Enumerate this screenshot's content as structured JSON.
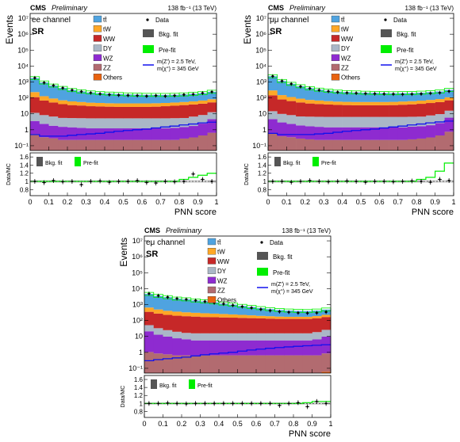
{
  "colors": {
    "ttbar": "#4fa3e0",
    "tW": "#ffa726",
    "WW": "#c62828",
    "DY": "#aab7c7",
    "WZ": "#8e2bd0",
    "ZZ": "#b26b70",
    "Others": "#e8620f",
    "bkg_fit": "#555555",
    "prefit": "#00ee00",
    "signal": "#1010ee",
    "data": "#000000"
  },
  "chart_data": [
    {
      "type": "area",
      "cms_label": "CMS",
      "preliminary_label": "Preliminary",
      "lumi_label": "138 fb⁻¹ (13 TeV)",
      "channel_label": "ee channel",
      "region_label": "SR",
      "ylabel": "Events",
      "ratio_ylabel": "Data/MC",
      "xlabel": "PNN score",
      "xlim": [
        0,
        1
      ],
      "ylim": [
        0.05,
        20000000
      ],
      "y_scale": "log",
      "ratio_ylim": [
        0.65,
        1.7
      ],
      "x_ticks": [
        "0",
        "0.1",
        "0.2",
        "0.3",
        "0.4",
        "0.5",
        "0.6",
        "0.7",
        "0.8",
        "0.9",
        "1"
      ],
      "y_ticks": [
        "10⁻¹",
        "1",
        "10",
        "10²",
        "10³",
        "10⁴",
        "10⁵",
        "10⁶",
        "10⁷"
      ],
      "ratio_ticks": [
        "0.8",
        "1",
        "1.2",
        "1.4",
        "1.6"
      ],
      "legend_process": [
        "tt̄",
        "tW",
        "WW",
        "DY",
        "WZ",
        "ZZ",
        "Others"
      ],
      "legend_extra": [
        "Data",
        "Bkg. fit",
        "Pre-fit",
        "m(Z′) = 2.5 TeV,",
        "m(χ°) = 345 GeV"
      ],
      "ratio_legend": [
        "Bkg. fit",
        "Pre-fit"
      ],
      "bin_edges": [
        0,
        0.05,
        0.1,
        0.15,
        0.2,
        0.25,
        0.3,
        0.35,
        0.4,
        0.45,
        0.5,
        0.55,
        0.6,
        0.65,
        0.7,
        0.75,
        0.8,
        0.85,
        0.9,
        0.95,
        1.0
      ],
      "series": [
        {
          "name": "Others",
          "values": [
            0.05,
            0.04,
            0.04,
            0.03,
            0.03,
            0.03,
            0.03,
            0.03,
            0.03,
            0.03,
            0.03,
            0.03,
            0.03,
            0.03,
            0.03,
            0.03,
            0.03,
            0.03,
            0.04,
            0.05
          ]
        },
        {
          "name": "ZZ",
          "values": [
            0.5,
            0.3,
            0.25,
            0.2,
            0.2,
            0.2,
            0.2,
            0.2,
            0.2,
            0.2,
            0.2,
            0.2,
            0.2,
            0.2,
            0.2,
            0.2,
            0.25,
            0.3,
            0.4,
            0.6
          ]
        },
        {
          "name": "WZ",
          "values": [
            3,
            2,
            1.5,
            1.3,
            1.2,
            1.1,
            1.0,
            1.0,
            1.0,
            1.0,
            1.0,
            1.0,
            1.0,
            1.0,
            1.0,
            1.1,
            1.2,
            1.4,
            2.0,
            4.0
          ]
        },
        {
          "name": "DY",
          "values": [
            8,
            6,
            5,
            4,
            4,
            4,
            4,
            4,
            4,
            4,
            4,
            4,
            4,
            4,
            4,
            4,
            4,
            5,
            6,
            8
          ]
        },
        {
          "name": "WW",
          "values": [
            100,
            60,
            45,
            35,
            30,
            28,
            25,
            24,
            23,
            22,
            22,
            22,
            22,
            23,
            25,
            27,
            30,
            32,
            35,
            40
          ]
        },
        {
          "name": "tW",
          "values": [
            120,
            60,
            40,
            30,
            25,
            22,
            20,
            19,
            18,
            18,
            18,
            18,
            18,
            18,
            18,
            19,
            20,
            22,
            25,
            30
          ]
        },
        {
          "name": "tt̄",
          "values": [
            1500,
            800,
            500,
            350,
            250,
            200,
            170,
            150,
            140,
            130,
            120,
            115,
            110,
            108,
            105,
            105,
            110,
            120,
            130,
            160
          ]
        }
      ],
      "data_points": [
        1800,
        900,
        600,
        420,
        310,
        250,
        210,
        180,
        160,
        150,
        145,
        140,
        130,
        140,
        130,
        140,
        160,
        170,
        200,
        240
      ],
      "signal": [
        0.5,
        0.4,
        0.4,
        0.4,
        0.45,
        0.5,
        0.55,
        0.6,
        0.7,
        0.8,
        0.9,
        1.0,
        1.1,
        1.3,
        1.5,
        1.7,
        2.0,
        2.3,
        2.7,
        3.0
      ],
      "ratio_data": [
        1.0,
        0.97,
        1.02,
        0.99,
        1.0,
        0.92,
        1.0,
        1.01,
        0.98,
        1.0,
        1.0,
        1.02,
        0.97,
        0.96,
        1.0,
        0.99,
        1.0,
        1.18,
        1.05,
        1.0
      ],
      "ratio_prefit": [
        1.0,
        1.0,
        1.0,
        1.0,
        1.0,
        1.0,
        1.0,
        1.0,
        1.0,
        1.0,
        1.0,
        1.0,
        1.0,
        1.0,
        1.0,
        1.0,
        1.05,
        1.1,
        1.15,
        1.2
      ]
    },
    {
      "type": "area",
      "cms_label": "CMS",
      "preliminary_label": "Preliminary",
      "lumi_label": "138 fb⁻¹ (13 TeV)",
      "channel_label": "μμ channel",
      "region_label": "SR",
      "ylabel": "Events",
      "ratio_ylabel": "Data/MC",
      "xlabel": "PNN score",
      "xlim": [
        0,
        1
      ],
      "ylim": [
        0.05,
        20000000
      ],
      "y_scale": "log",
      "ratio_ylim": [
        0.65,
        1.7
      ],
      "x_ticks": [
        "0",
        "0.1",
        "0.2",
        "0.3",
        "0.4",
        "0.5",
        "0.6",
        "0.7",
        "0.8",
        "0.9",
        "1"
      ],
      "y_ticks": [
        "10⁻¹",
        "1",
        "10",
        "10²",
        "10³",
        "10⁴",
        "10⁵",
        "10⁶",
        "10⁷"
      ],
      "ratio_ticks": [
        "0.8",
        "1",
        "1.2",
        "1.4",
        "1.6"
      ],
      "legend_process": [
        "tt̄",
        "tW",
        "WW",
        "DY",
        "WZ",
        "ZZ",
        "Others"
      ],
      "legend_extra": [
        "Data",
        "Bkg. fit",
        "Pre-fit",
        "m(Z′) = 2.5 TeV,",
        "m(χ°) = 345 GeV"
      ],
      "ratio_legend": [
        "Bkg. fit",
        "Pre-fit"
      ],
      "bin_edges": [
        0,
        0.05,
        0.1,
        0.15,
        0.2,
        0.25,
        0.3,
        0.35,
        0.4,
        0.45,
        0.5,
        0.55,
        0.6,
        0.65,
        0.7,
        0.75,
        0.8,
        0.85,
        0.9,
        0.95,
        1.0
      ],
      "series": [
        {
          "name": "Others",
          "values": [
            0.05,
            0.04,
            0.04,
            0.03,
            0.03,
            0.03,
            0.03,
            0.03,
            0.03,
            0.03,
            0.03,
            0.03,
            0.03,
            0.03,
            0.03,
            0.03,
            0.03,
            0.03,
            0.04,
            0.05
          ]
        },
        {
          "name": "ZZ",
          "values": [
            0.6,
            0.35,
            0.3,
            0.25,
            0.22,
            0.2,
            0.2,
            0.2,
            0.2,
            0.2,
            0.2,
            0.2,
            0.2,
            0.2,
            0.2,
            0.22,
            0.25,
            0.3,
            0.4,
            0.7
          ]
        },
        {
          "name": "WZ",
          "values": [
            4,
            2.5,
            2,
            1.6,
            1.4,
            1.3,
            1.2,
            1.2,
            1.2,
            1.2,
            1.2,
            1.2,
            1.2,
            1.2,
            1.2,
            1.3,
            1.4,
            1.6,
            2.2,
            5.0
          ]
        },
        {
          "name": "DY",
          "values": [
            10,
            7,
            6,
            5,
            5,
            5,
            5,
            5,
            5,
            5,
            5,
            5,
            5,
            5,
            5,
            5,
            5,
            6,
            7,
            10
          ]
        },
        {
          "name": "WW",
          "values": [
            130,
            70,
            55,
            45,
            38,
            35,
            32,
            30,
            29,
            28,
            28,
            28,
            28,
            29,
            31,
            33,
            36,
            40,
            45,
            55
          ]
        },
        {
          "name": "tW",
          "values": [
            150,
            70,
            50,
            38,
            30,
            27,
            24,
            22,
            21,
            21,
            21,
            21,
            21,
            21,
            22,
            23,
            25,
            27,
            30,
            38
          ]
        },
        {
          "name": "tt̄",
          "values": [
            2000,
            1000,
            650,
            450,
            330,
            260,
            220,
            190,
            175,
            165,
            155,
            150,
            145,
            140,
            140,
            140,
            145,
            155,
            170,
            210
          ]
        }
      ],
      "data_points": [
        2300,
        1150,
        760,
        520,
        400,
        310,
        260,
        230,
        210,
        200,
        190,
        185,
        180,
        175,
        170,
        175,
        180,
        195,
        210,
        260
      ],
      "signal": [
        0.6,
        0.5,
        0.5,
        0.5,
        0.5,
        0.55,
        0.6,
        0.7,
        0.8,
        0.9,
        1.0,
        1.1,
        1.3,
        1.5,
        1.7,
        2.0,
        2.3,
        2.7,
        3.1,
        3.5
      ],
      "ratio_data": [
        1.0,
        1.0,
        0.98,
        1.0,
        1.02,
        1.0,
        0.99,
        1.0,
        1.01,
        1.0,
        0.98,
        1.0,
        1.0,
        0.99,
        1.0,
        1.01,
        1.0,
        0.98,
        1.05,
        1.02
      ],
      "ratio_prefit": [
        1.0,
        1.0,
        1.0,
        1.0,
        1.0,
        1.0,
        1.0,
        1.0,
        1.0,
        1.0,
        1.0,
        1.0,
        1.0,
        1.0,
        1.0,
        1.0,
        1.05,
        1.1,
        1.25,
        1.45
      ]
    },
    {
      "type": "area",
      "cms_label": "CMS",
      "preliminary_label": "Preliminary",
      "lumi_label": "138 fb⁻¹ (13 TeV)",
      "channel_label": "eμ channel",
      "region_label": "SR",
      "ylabel": "Events",
      "ratio_ylabel": "Data/MC",
      "xlabel": "PNN score",
      "xlim": [
        0,
        1
      ],
      "ylim": [
        0.05,
        20000000
      ],
      "y_scale": "log",
      "ratio_ylim": [
        0.65,
        1.7
      ],
      "x_ticks": [
        "0",
        "0.1",
        "0.2",
        "0.3",
        "0.4",
        "0.5",
        "0.6",
        "0.7",
        "0.8",
        "0.9",
        "1"
      ],
      "y_ticks": [
        "10⁻¹",
        "1",
        "10",
        "10²",
        "10³",
        "10⁴",
        "10⁵",
        "10⁶",
        "10⁷"
      ],
      "ratio_ticks": [
        "0.8",
        "1",
        "1.2",
        "1.4",
        "1.6"
      ],
      "legend_process": [
        "tt̄",
        "tW",
        "WW",
        "DY",
        "WZ",
        "ZZ",
        "Others"
      ],
      "legend_extra": [
        "Data",
        "Bkg. fit",
        "Pre-fit",
        "m(Z′) = 2.5 TeV,",
        "m(χ°) = 345 GeV"
      ],
      "ratio_legend": [
        "Bkg. fit",
        "Pre-fit"
      ],
      "bin_edges": [
        0,
        0.05,
        0.1,
        0.15,
        0.2,
        0.25,
        0.3,
        0.35,
        0.4,
        0.45,
        0.5,
        0.55,
        0.6,
        0.65,
        0.7,
        0.75,
        0.8,
        0.85,
        0.9,
        0.95,
        1.0
      ],
      "series": [
        {
          "name": "Others",
          "values": [
            0.05,
            0.05,
            0.05,
            0.05,
            0.05,
            0.05,
            0.05,
            0.05,
            0.05,
            0.05,
            0.05,
            0.05,
            0.05,
            0.05,
            0.05,
            0.05,
            0.05,
            0.05,
            0.05,
            0.06
          ]
        },
        {
          "name": "ZZ",
          "values": [
            1.0,
            0.8,
            0.7,
            0.6,
            0.6,
            0.6,
            0.6,
            0.6,
            0.6,
            0.6,
            0.6,
            0.6,
            0.6,
            0.6,
            0.6,
            0.6,
            0.6,
            0.6,
            0.6,
            0.8
          ]
        },
        {
          "name": "WZ",
          "values": [
            20,
            12,
            9,
            7,
            6,
            5,
            5,
            5,
            5,
            5,
            5,
            5,
            5,
            5,
            5,
            5,
            5,
            5,
            6,
            9
          ]
        },
        {
          "name": "DY",
          "values": [
            30,
            20,
            15,
            12,
            10,
            10,
            10,
            10,
            10,
            10,
            10,
            10,
            10,
            10,
            10,
            10,
            10,
            10,
            12,
            16
          ]
        },
        {
          "name": "WW",
          "values": [
            300,
            240,
            200,
            180,
            170,
            160,
            150,
            145,
            140,
            135,
            130,
            125,
            120,
            115,
            110,
            110,
            110,
            110,
            120,
            140
          ]
        },
        {
          "name": "tW",
          "values": [
            300,
            220,
            180,
            160,
            140,
            130,
            120,
            110,
            100,
            90,
            80,
            70,
            60,
            55,
            50,
            45,
            45,
            45,
            50,
            60
          ]
        },
        {
          "name": "tt̄",
          "values": [
            4000,
            3000,
            2500,
            2000,
            1800,
            1500,
            1300,
            1100,
            900,
            750,
            600,
            500,
            400,
            330,
            280,
            250,
            230,
            220,
            230,
            260
          ]
        }
      ],
      "data_points": [
        4800,
        3600,
        2900,
        2400,
        2100,
        1800,
        1550,
        1300,
        1100,
        900,
        750,
        620,
        500,
        420,
        360,
        330,
        300,
        290,
        300,
        340
      ],
      "signal": [
        0.3,
        0.35,
        0.4,
        0.45,
        0.5,
        0.6,
        0.7,
        0.8,
        0.9,
        1.0,
        1.2,
        1.4,
        1.6,
        1.8,
        2.0,
        2.2,
        2.4,
        2.6,
        2.8,
        3.0
      ],
      "ratio_data": [
        1.0,
        1.0,
        1.01,
        1.0,
        0.99,
        1.0,
        1.0,
        1.0,
        1.0,
        1.0,
        1.0,
        1.0,
        1.0,
        1.0,
        0.95,
        1.0,
        1.02,
        0.92,
        1.05,
        1.0
      ],
      "ratio_prefit": [
        1.0,
        1.0,
        1.0,
        1.0,
        1.0,
        1.0,
        1.0,
        1.0,
        1.0,
        1.0,
        1.0,
        1.0,
        1.0,
        1.0,
        1.0,
        1.0,
        1.0,
        1.02,
        1.05,
        1.05
      ]
    }
  ]
}
